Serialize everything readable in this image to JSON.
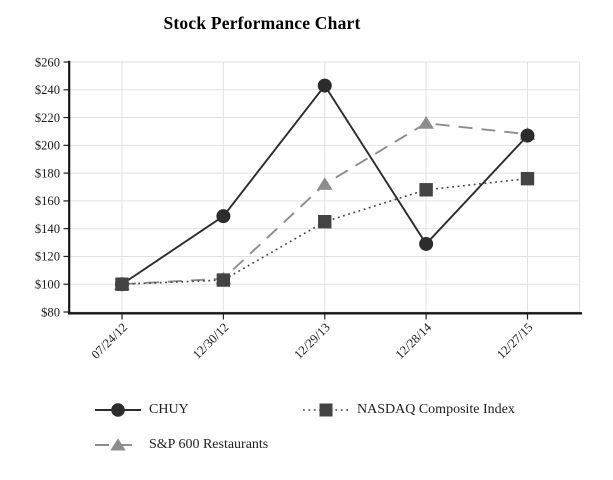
{
  "page": {
    "title": "Stock Performance Chart"
  },
  "chart_data": {
    "type": "line",
    "title": "Stock Performance Chart",
    "categories": [
      "07/24/12",
      "12/30/12",
      "12/29/13",
      "12/28/14",
      "12/27/15"
    ],
    "series": [
      {
        "name": "CHUY",
        "marker": "circle",
        "line_style": "solid",
        "color": "#2c2c2c",
        "values": [
          100,
          149,
          243,
          129,
          207
        ]
      },
      {
        "name": "NASDAQ Composite Index",
        "marker": "square",
        "line_style": "dotted",
        "color": "#434343",
        "values": [
          100,
          103,
          145,
          168,
          176
        ]
      },
      {
        "name": "S&P 600 Restaurants",
        "marker": "triangle",
        "line_style": "dashed",
        "color": "#8d8d8d",
        "values": [
          100,
          104,
          172,
          216,
          208
        ]
      }
    ],
    "xlabel": "",
    "ylabel": "",
    "ylim": [
      80,
      260
    ],
    "ytick_step": 20,
    "ytick_prefix": "$",
    "grid": true,
    "legend_position": "bottom-left",
    "axis_color": "#161616",
    "grid_color": "#e2e2e2",
    "tick_color": "#222222"
  }
}
